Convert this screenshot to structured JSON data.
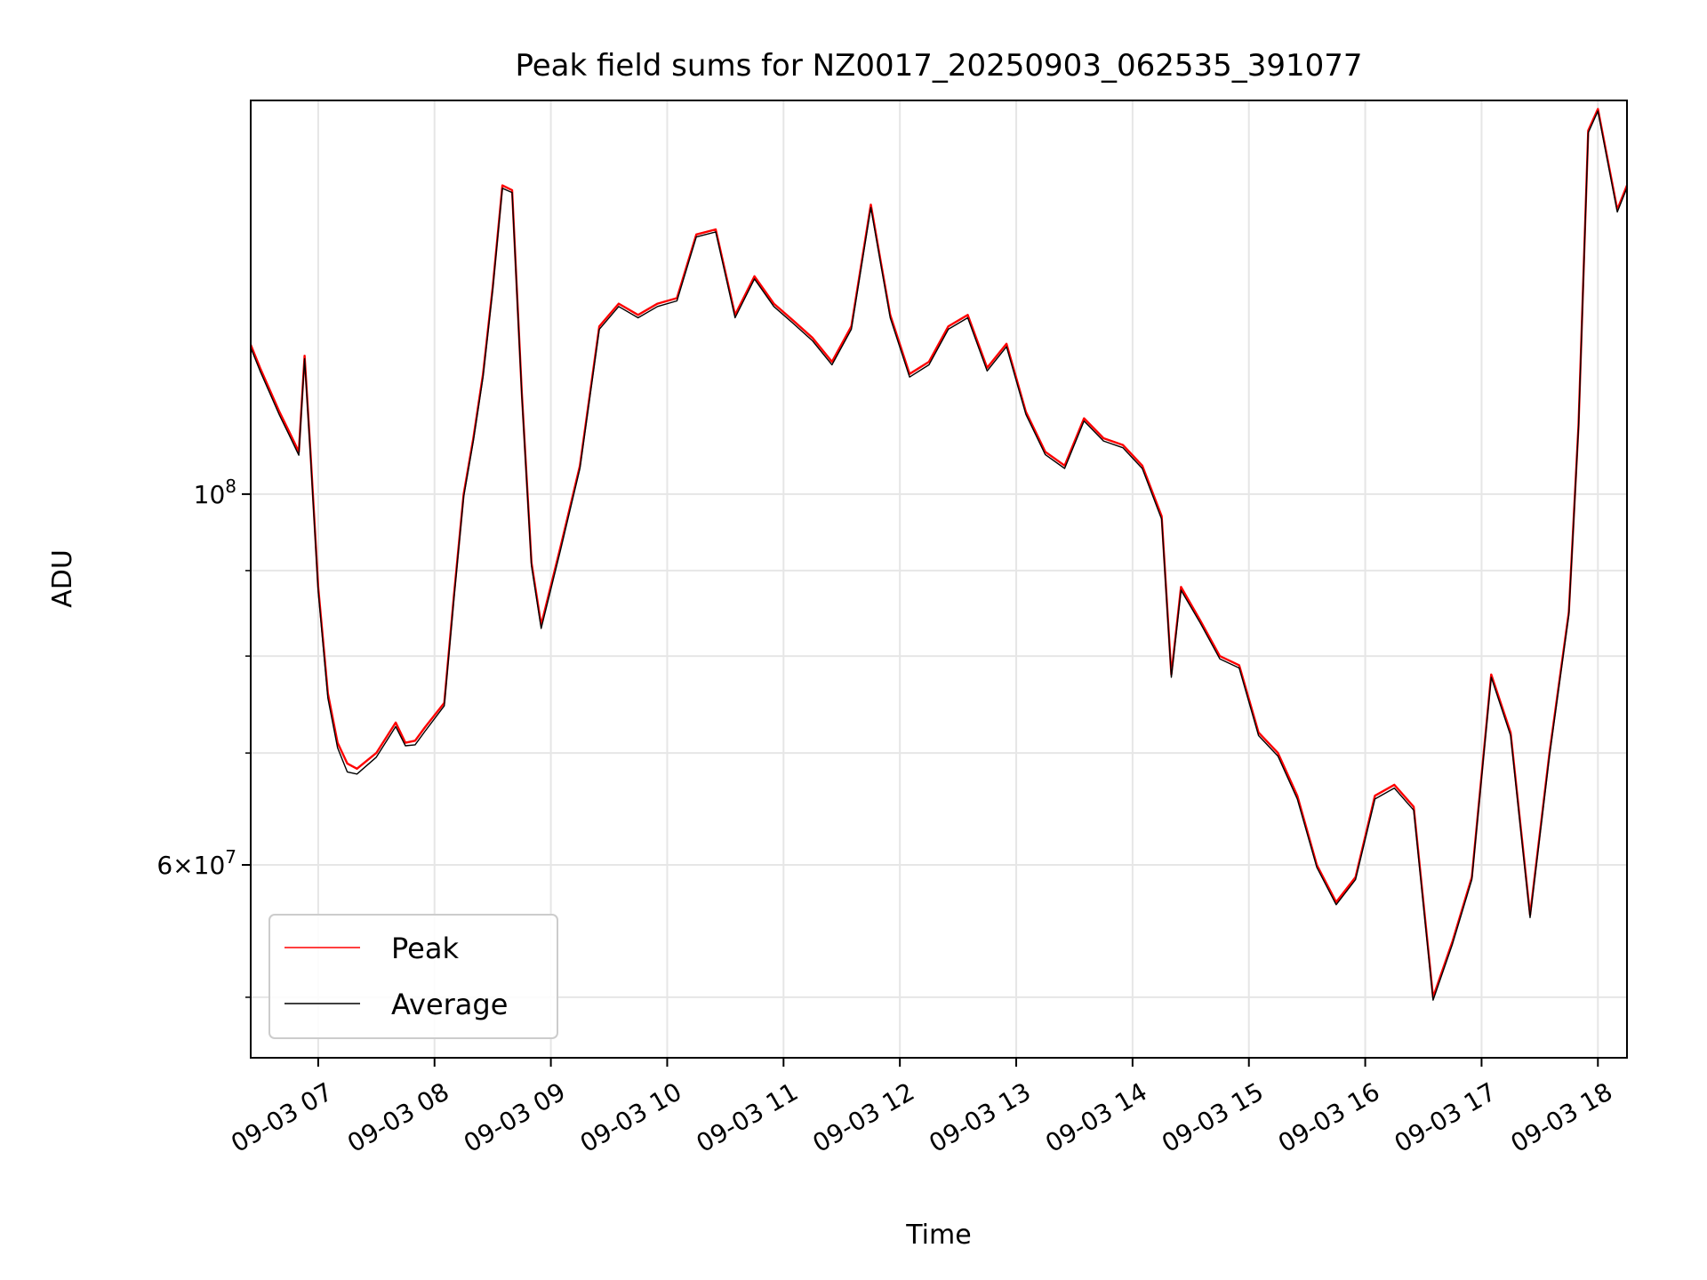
{
  "chart_data": {
    "type": "line",
    "title": "Peak field sums for NZ0017_20250903_062535_391077",
    "xlabel": "Time",
    "ylabel": "ADU",
    "yscale": "log",
    "xlim": [
      6.42,
      18.25
    ],
    "ylim": [
      46000000,
      172000000
    ],
    "grid": true,
    "legend_position": "lower-left",
    "x_ticks": [
      7,
      8,
      9,
      10,
      11,
      12,
      13,
      14,
      15,
      16,
      17,
      18
    ],
    "x_tick_labels": [
      "09-03 07",
      "09-03 08",
      "09-03 09",
      "09-03 10",
      "09-03 11",
      "09-03 12",
      "09-03 13",
      "09-03 14",
      "09-03 15",
      "09-03 16",
      "09-03 17",
      "09-03 18"
    ],
    "y_major_ticks": [
      100000000,
      60000000
    ],
    "y_major_tick_labels": [
      "10^8",
      "6×10^7"
    ],
    "y_minor_ticks": [
      50000000,
      70000000,
      80000000,
      90000000
    ],
    "x": [
      "06:25",
      "06:30",
      "06:40",
      "06:45",
      "06:50",
      "06:53",
      "06:56",
      "07:00",
      "07:05",
      "07:10",
      "07:15",
      "07:20",
      "07:30",
      "07:40",
      "07:45",
      "07:50",
      "07:55",
      "08:05",
      "08:10",
      "08:15",
      "08:20",
      "08:25",
      "08:30",
      "08:35",
      "08:40",
      "08:45",
      "08:50",
      "08:55",
      "09:05",
      "09:15",
      "09:25",
      "09:35",
      "09:45",
      "09:55",
      "10:05",
      "10:15",
      "10:25",
      "10:35",
      "10:45",
      "10:55",
      "11:05",
      "11:15",
      "11:25",
      "11:35",
      "11:45",
      "11:50",
      "11:55",
      "12:05",
      "12:15",
      "12:25",
      "12:35",
      "12:45",
      "12:55",
      "13:05",
      "13:15",
      "13:25",
      "13:35",
      "13:45",
      "13:55",
      "14:05",
      "14:15",
      "14:20",
      "14:25",
      "14:35",
      "14:45",
      "14:55",
      "15:05",
      "15:15",
      "15:25",
      "15:35",
      "15:45",
      "15:55",
      "16:05",
      "16:15",
      "16:25",
      "16:35",
      "16:45",
      "16:55",
      "17:05",
      "17:15",
      "17:25",
      "17:35",
      "17:45",
      "17:50",
      "17:55",
      "18:00",
      "18:10",
      "18:15"
    ],
    "series": [
      {
        "name": "Peak",
        "color": "#ff0000",
        "values": [
          123000000,
          119000000,
          112000000,
          109000000,
          106000000,
          121000000,
          106000000,
          88000000,
          76000000,
          71000000,
          69000000,
          68500000,
          70000000,
          73000000,
          71000000,
          71200000,
          72500000,
          75000000,
          87000000,
          100000000,
          108000000,
          118000000,
          133000000,
          153000000,
          152000000,
          115000000,
          91000000,
          83500000,
          93000000,
          104000000,
          126000000,
          130000000,
          128000000,
          130000000,
          131000000,
          143000000,
          144000000,
          128000000,
          135000000,
          130000000,
          127000000,
          124000000,
          120000000,
          126000000,
          149000000,
          138000000,
          128000000,
          118000000,
          120000000,
          126000000,
          128000000,
          119000000,
          123000000,
          112000000,
          106000000,
          104000000,
          111000000,
          108000000,
          107000000,
          104000000,
          97000000,
          78000000,
          88000000,
          84000000,
          80000000,
          79000000,
          72000000,
          70000000,
          66000000,
          60000000,
          57000000,
          59000000,
          66000000,
          67000000,
          65000000,
          50000000,
          54000000,
          59000000,
          78000000,
          72000000,
          56000000,
          70000000,
          85000000,
          110000000,
          165000000,
          170000000,
          148000000,
          153000000
        ]
      },
      {
        "name": "Average",
        "color": "#000000",
        "values": [
          122500000,
          118500000,
          111500000,
          108500000,
          105500000,
          120500000,
          105500000,
          87500000,
          75500000,
          70500000,
          68200000,
          68000000,
          69600000,
          72600000,
          70700000,
          70800000,
          72100000,
          74700000,
          86600000,
          99600000,
          107600000,
          117500000,
          132500000,
          152400000,
          151500000,
          114600000,
          90600000,
          83100000,
          92600000,
          103600000,
          125500000,
          129500000,
          127500000,
          129500000,
          130500000,
          142500000,
          143500000,
          127500000,
          134500000,
          129500000,
          126500000,
          123500000,
          119500000,
          125500000,
          148400000,
          137500000,
          127500000,
          117500000,
          119500000,
          125500000,
          127500000,
          118500000,
          122500000,
          111600000,
          105600000,
          103600000,
          110600000,
          107600000,
          106600000,
          103600000,
          96600000,
          77700000,
          87600000,
          83700000,
          79700000,
          78700000,
          71700000,
          69700000,
          65700000,
          59800000,
          56800000,
          58800000,
          65700000,
          66700000,
          64700000,
          49800000,
          53800000,
          58800000,
          77700000,
          71700000,
          55800000,
          69700000,
          84700000,
          109600000,
          164500000,
          169500000,
          147500000,
          152500000
        ]
      }
    ]
  }
}
